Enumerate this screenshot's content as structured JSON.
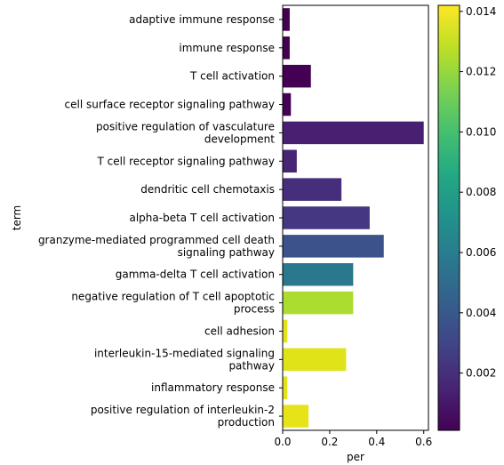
{
  "chart_data": {
    "type": "bar",
    "orientation": "horizontal",
    "xlabel": "per",
    "ylabel": "term",
    "xlim": [
      0,
      0.62
    ],
    "xticks": [
      0.0,
      0.2,
      0.4,
      0.6
    ],
    "xtick_labels": [
      "0.0",
      "0.2",
      "0.4",
      "0.6"
    ],
    "colorbar": {
      "colormap": "viridis",
      "range": [
        0.0001,
        0.0142
      ],
      "ticks": [
        0.002,
        0.004,
        0.006,
        0.008,
        0.01,
        0.012,
        0.014
      ],
      "tick_labels": [
        "0.002",
        "0.004",
        "0.006",
        "0.008",
        "0.010",
        "0.012",
        "0.014"
      ]
    },
    "categories": [
      [
        "adaptive immune response"
      ],
      [
        "immune response"
      ],
      [
        "T cell activation"
      ],
      [
        "cell surface receptor signaling pathway"
      ],
      [
        "positive regulation of vasculature",
        "development"
      ],
      [
        "T cell receptor signaling pathway"
      ],
      [
        "dendritic cell chemotaxis"
      ],
      [
        "alpha-beta T cell activation"
      ],
      [
        "granzyme-mediated programmed cell death",
        "signaling pathway"
      ],
      [
        "gamma-delta T cell activation"
      ],
      [
        "negative regulation of T cell apoptotic",
        "process"
      ],
      [
        "cell adhesion"
      ],
      [
        "interleukin-15-mediated signaling",
        "pathway"
      ],
      [
        "inflammatory response"
      ],
      [
        "positive regulation of interleukin-2",
        "production"
      ]
    ],
    "values": [
      0.03,
      0.03,
      0.12,
      0.035,
      0.6,
      0.06,
      0.25,
      0.37,
      0.43,
      0.3,
      0.3,
      0.02,
      0.27,
      0.02,
      0.11
    ],
    "colors": [
      "#440154",
      "#440154",
      "#440154",
      "#440256",
      "#482071",
      "#482475",
      "#472e7c",
      "#453781",
      "#3b528b",
      "#2a788e",
      "#addc30",
      "#e2e418",
      "#dfe318",
      "#e2e418",
      "#e6e419"
    ]
  }
}
